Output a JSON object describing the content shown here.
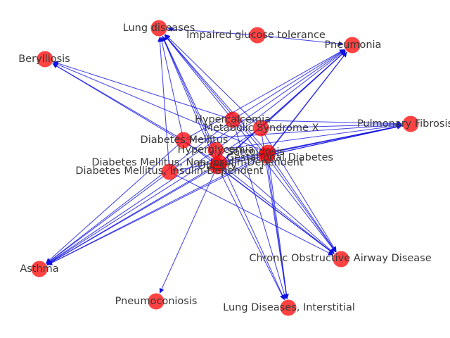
{
  "nodes": [
    {
      "id": "lung_diseases",
      "label": "Lung diseases"
    },
    {
      "id": "impaired_glucose",
      "label": "Impaired glucose tolerance"
    },
    {
      "id": "pneumonia",
      "label": "Pneumonia"
    },
    {
      "id": "berylliosis",
      "label": "Berylliosis"
    },
    {
      "id": "hypercalcemia",
      "label": "Hypercalcemia"
    },
    {
      "id": "metabolic_syndrome",
      "label": "Metabolic Syndrome X"
    },
    {
      "id": "pulmonary_fibrosis",
      "label": "Pulmonary Fibrosis"
    },
    {
      "id": "diabetes_mellitus",
      "label": "Diabetes Mellitus"
    },
    {
      "id": "hyperglycemia",
      "label": "Hyperglycemia"
    },
    {
      "id": "gestational_diabetes",
      "label": "Gestational Diabetes"
    },
    {
      "id": "dm_non_insulin",
      "label": "Diabetes Mellitus, Non-Insulin-Dependent"
    },
    {
      "id": "dm_insulin",
      "label": "Diabetes Mellitus, Insulin-Dependent"
    },
    {
      "id": "sarcoidosis",
      "label": "Sarcoidosis"
    },
    {
      "id": "obesity",
      "label": "Obesity"
    },
    {
      "id": "asthma",
      "label": "Asthma"
    },
    {
      "id": "copd",
      "label": "Chronic Obstructive Airway Disease"
    },
    {
      "id": "pneumoconiosis",
      "label": "Pneumoconiosis"
    },
    {
      "id": "lung_interstitial",
      "label": "Lung Diseases, Interstitial"
    }
  ],
  "edges": [
    [
      "impaired_glucose",
      "lung_diseases"
    ],
    [
      "impaired_glucose",
      "pneumonia"
    ],
    [
      "hypercalcemia",
      "lung_diseases"
    ],
    [
      "hypercalcemia",
      "berylliosis"
    ],
    [
      "hypercalcemia",
      "pneumonia"
    ],
    [
      "hypercalcemia",
      "pulmonary_fibrosis"
    ],
    [
      "hypercalcemia",
      "asthma"
    ],
    [
      "hypercalcemia",
      "copd"
    ],
    [
      "hypercalcemia",
      "lung_interstitial"
    ],
    [
      "metabolic_syndrome",
      "lung_diseases"
    ],
    [
      "metabolic_syndrome",
      "pneumonia"
    ],
    [
      "metabolic_syndrome",
      "pulmonary_fibrosis"
    ],
    [
      "metabolic_syndrome",
      "asthma"
    ],
    [
      "metabolic_syndrome",
      "copd"
    ],
    [
      "metabolic_syndrome",
      "lung_interstitial"
    ],
    [
      "diabetes_mellitus",
      "lung_diseases"
    ],
    [
      "diabetes_mellitus",
      "berylliosis"
    ],
    [
      "diabetes_mellitus",
      "pneumonia"
    ],
    [
      "diabetes_mellitus",
      "pulmonary_fibrosis"
    ],
    [
      "diabetes_mellitus",
      "asthma"
    ],
    [
      "diabetes_mellitus",
      "copd"
    ],
    [
      "hyperglycemia",
      "lung_diseases"
    ],
    [
      "hyperglycemia",
      "pneumonia"
    ],
    [
      "hyperglycemia",
      "pulmonary_fibrosis"
    ],
    [
      "hyperglycemia",
      "asthma"
    ],
    [
      "hyperglycemia",
      "copd"
    ],
    [
      "hyperglycemia",
      "lung_interstitial"
    ],
    [
      "gestational_diabetes",
      "lung_diseases"
    ],
    [
      "gestational_diabetes",
      "pneumonia"
    ],
    [
      "gestational_diabetes",
      "pulmonary_fibrosis"
    ],
    [
      "gestational_diabetes",
      "asthma"
    ],
    [
      "gestational_diabetes",
      "copd"
    ],
    [
      "gestational_diabetes",
      "lung_interstitial"
    ],
    [
      "dm_non_insulin",
      "lung_diseases"
    ],
    [
      "dm_non_insulin",
      "pneumonia"
    ],
    [
      "dm_non_insulin",
      "pulmonary_fibrosis"
    ],
    [
      "dm_non_insulin",
      "asthma"
    ],
    [
      "dm_non_insulin",
      "copd"
    ],
    [
      "dm_non_insulin",
      "berylliosis"
    ],
    [
      "dm_insulin",
      "lung_diseases"
    ],
    [
      "dm_insulin",
      "pneumonia"
    ],
    [
      "dm_insulin",
      "pulmonary_fibrosis"
    ],
    [
      "dm_insulin",
      "asthma"
    ],
    [
      "dm_insulin",
      "copd"
    ],
    [
      "sarcoidosis",
      "lung_diseases"
    ],
    [
      "sarcoidosis",
      "pneumonia"
    ],
    [
      "sarcoidosis",
      "pulmonary_fibrosis"
    ],
    [
      "sarcoidosis",
      "asthma"
    ],
    [
      "sarcoidosis",
      "copd"
    ],
    [
      "sarcoidosis",
      "lung_interstitial"
    ],
    [
      "sarcoidosis",
      "berylliosis"
    ],
    [
      "obesity",
      "lung_diseases"
    ],
    [
      "obesity",
      "pneumonia"
    ],
    [
      "obesity",
      "pulmonary_fibrosis"
    ],
    [
      "obesity",
      "asthma"
    ],
    [
      "obesity",
      "copd"
    ],
    [
      "obesity",
      "pneumoconiosis"
    ],
    [
      "obesity",
      "lung_interstitial"
    ]
  ],
  "colors": {
    "node": "#ff0000",
    "edge": "#1010e0",
    "label": "#383838"
  }
}
